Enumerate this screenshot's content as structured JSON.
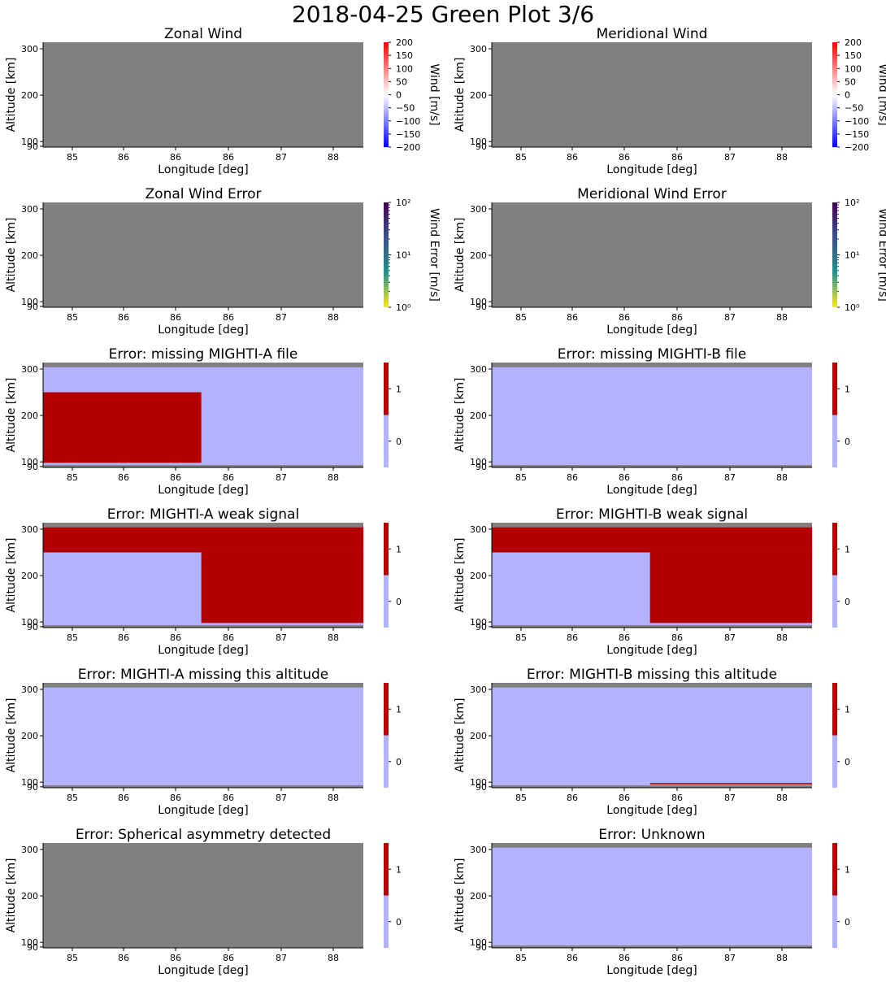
{
  "figure": {
    "title": "2018-04-25 Green Plot 3/6"
  },
  "colors": {
    "background": "#ffffff",
    "no_data": "#808080",
    "flag_0": "#b2b2ff",
    "flag_1": "#b20000"
  },
  "chart_data": [
    {
      "type": "heatmap",
      "title": "Zonal Wind",
      "xlabel": "Longitude [deg]",
      "ylabel": "Altitude [km]",
      "x_ticks": [
        "85",
        "86",
        "86",
        "86",
        "87",
        "88"
      ],
      "y_ticks": [
        "90",
        "100",
        "200",
        "300"
      ],
      "xlim": [
        84.45,
        88.6
      ],
      "ylim": [
        88,
        314
      ],
      "fill": "no_data",
      "regions": [],
      "colorbar": {
        "type": "diverging",
        "label": "Wind [m/s]",
        "colors": [
          "#0000ff",
          "#ffffff",
          "#ff0000"
        ],
        "ticks": [
          "200",
          "150",
          "100",
          "50",
          "0",
          "−50",
          "−100",
          "−150",
          "−200"
        ],
        "range": [
          -200,
          200
        ]
      }
    },
    {
      "type": "heatmap",
      "title": "Meridional Wind",
      "xlabel": "Longitude [deg]",
      "ylabel": "Altitude [km]",
      "x_ticks": [
        "85",
        "86",
        "86",
        "86",
        "87",
        "88"
      ],
      "y_ticks": [
        "90",
        "100",
        "200",
        "300"
      ],
      "xlim": [
        84.45,
        88.6
      ],
      "ylim": [
        88,
        314
      ],
      "fill": "no_data",
      "regions": [],
      "colorbar": {
        "type": "diverging",
        "label": "Wind [m/s]",
        "colors": [
          "#0000ff",
          "#ffffff",
          "#ff0000"
        ],
        "ticks": [
          "200",
          "150",
          "100",
          "50",
          "0",
          "−50",
          "−100",
          "−150",
          "−200"
        ],
        "range": [
          -200,
          200
        ]
      }
    },
    {
      "type": "heatmap",
      "title": "Zonal Wind Error",
      "xlabel": "Longitude [deg]",
      "ylabel": "Altitude [km]",
      "x_ticks": [
        "85",
        "86",
        "86",
        "86",
        "87",
        "88"
      ],
      "y_ticks": [
        "90",
        "100",
        "200",
        "300"
      ],
      "xlim": [
        84.45,
        88.6
      ],
      "ylim": [
        88,
        314
      ],
      "fill": "no_data",
      "regions": [],
      "colorbar": {
        "type": "log",
        "label": "Wind Error [m/s]",
        "colors": [
          "#fde725",
          "#21918c",
          "#3b528b",
          "#440154"
        ],
        "ticks": [
          "10²",
          "10¹",
          "10⁰"
        ],
        "range": [
          1,
          100
        ]
      }
    },
    {
      "type": "heatmap",
      "title": "Meridional Wind Error",
      "xlabel": "Longitude [deg]",
      "ylabel": "Altitude [km]",
      "x_ticks": [
        "85",
        "86",
        "86",
        "86",
        "87",
        "88"
      ],
      "y_ticks": [
        "90",
        "100",
        "200",
        "300"
      ],
      "xlim": [
        84.45,
        88.6
      ],
      "ylim": [
        88,
        314
      ],
      "fill": "no_data",
      "regions": [],
      "colorbar": {
        "type": "log",
        "label": "Wind Error [m/s]",
        "colors": [
          "#fde725",
          "#21918c",
          "#3b528b",
          "#440154"
        ],
        "ticks": [
          "10²",
          "10¹",
          "10⁰"
        ],
        "range": [
          1,
          100
        ]
      }
    },
    {
      "type": "heatmap",
      "title": "Error: missing MIGHTI-A file",
      "xlabel": "Longitude [deg]",
      "ylabel": "Altitude [km]",
      "x_ticks": [
        "85",
        "86",
        "86",
        "86",
        "87",
        "88"
      ],
      "y_ticks": [
        "90",
        "100",
        "200",
        "300"
      ],
      "xlim": [
        84.45,
        88.6
      ],
      "ylim": [
        88,
        314
      ],
      "fill": "no_data",
      "regions": [
        {
          "x": [
            84.45,
            88.6
          ],
          "y": [
            93,
            304
          ],
          "value": 0
        },
        {
          "x": [
            84.45,
            86.5
          ],
          "y": [
            98,
            250
          ],
          "value": 1
        }
      ],
      "colorbar": {
        "type": "flag",
        "label": "",
        "ticks": [
          "1",
          "0"
        ],
        "range": [
          -0.5,
          1.5
        ]
      }
    },
    {
      "type": "heatmap",
      "title": "Error: missing MIGHTI-B file",
      "xlabel": "Longitude [deg]",
      "ylabel": "Altitude [km]",
      "x_ticks": [
        "85",
        "86",
        "86",
        "86",
        "87",
        "88"
      ],
      "y_ticks": [
        "90",
        "100",
        "200",
        "300"
      ],
      "xlim": [
        84.45,
        88.6
      ],
      "ylim": [
        88,
        314
      ],
      "fill": "no_data",
      "regions": [
        {
          "x": [
            84.45,
            88.6
          ],
          "y": [
            93,
            304
          ],
          "value": 0
        }
      ],
      "colorbar": {
        "type": "flag",
        "label": "",
        "ticks": [
          "1",
          "0"
        ],
        "range": [
          -0.5,
          1.5
        ]
      }
    },
    {
      "type": "heatmap",
      "title": "Error: MIGHTI-A weak signal",
      "xlabel": "Longitude [deg]",
      "ylabel": "Altitude [km]",
      "x_ticks": [
        "85",
        "86",
        "86",
        "86",
        "87",
        "88"
      ],
      "y_ticks": [
        "90",
        "100",
        "200",
        "300"
      ],
      "xlim": [
        84.45,
        88.6
      ],
      "ylim": [
        88,
        314
      ],
      "fill": "no_data",
      "regions": [
        {
          "x": [
            84.45,
            88.6
          ],
          "y": [
            93,
            304
          ],
          "value": 0
        },
        {
          "x": [
            84.45,
            88.6
          ],
          "y": [
            250,
            304
          ],
          "value": 1
        },
        {
          "x": [
            86.5,
            88.6
          ],
          "y": [
            98,
            250
          ],
          "value": 1
        }
      ],
      "colorbar": {
        "type": "flag",
        "label": "",
        "ticks": [
          "1",
          "0"
        ],
        "range": [
          -0.5,
          1.5
        ]
      }
    },
    {
      "type": "heatmap",
      "title": "Error: MIGHTI-B weak signal",
      "xlabel": "Longitude [deg]",
      "ylabel": "Altitude [km]",
      "x_ticks": [
        "85",
        "86",
        "86",
        "86",
        "87",
        "88"
      ],
      "y_ticks": [
        "90",
        "100",
        "200",
        "300"
      ],
      "xlim": [
        84.45,
        88.6
      ],
      "ylim": [
        88,
        314
      ],
      "fill": "no_data",
      "regions": [
        {
          "x": [
            84.45,
            88.6
          ],
          "y": [
            93,
            304
          ],
          "value": 0
        },
        {
          "x": [
            84.45,
            88.6
          ],
          "y": [
            250,
            304
          ],
          "value": 1
        },
        {
          "x": [
            86.5,
            88.6
          ],
          "y": [
            98,
            250
          ],
          "value": 1
        }
      ],
      "colorbar": {
        "type": "flag",
        "label": "",
        "ticks": [
          "1",
          "0"
        ],
        "range": [
          -0.5,
          1.5
        ]
      }
    },
    {
      "type": "heatmap",
      "title": "Error: MIGHTI-A missing this altitude",
      "xlabel": "Longitude [deg]",
      "ylabel": "Altitude [km]",
      "x_ticks": [
        "85",
        "86",
        "86",
        "86",
        "87",
        "88"
      ],
      "y_ticks": [
        "90",
        "100",
        "200",
        "300"
      ],
      "xlim": [
        84.45,
        88.6
      ],
      "ylim": [
        88,
        314
      ],
      "fill": "no_data",
      "regions": [
        {
          "x": [
            84.45,
            88.6
          ],
          "y": [
            93,
            304
          ],
          "value": 0
        }
      ],
      "colorbar": {
        "type": "flag",
        "label": "",
        "ticks": [
          "1",
          "0"
        ],
        "range": [
          -0.5,
          1.5
        ]
      }
    },
    {
      "type": "heatmap",
      "title": "Error: MIGHTI-B missing this altitude",
      "xlabel": "Longitude [deg]",
      "ylabel": "Altitude [km]",
      "x_ticks": [
        "85",
        "86",
        "86",
        "86",
        "87",
        "88"
      ],
      "y_ticks": [
        "90",
        "100",
        "200",
        "300"
      ],
      "xlim": [
        84.45,
        88.6
      ],
      "ylim": [
        88,
        314
      ],
      "fill": "no_data",
      "regions": [
        {
          "x": [
            84.45,
            88.6
          ],
          "y": [
            93,
            304
          ],
          "value": 0
        },
        {
          "x": [
            86.5,
            88.6
          ],
          "y": [
            95,
            98
          ],
          "value": 1
        }
      ],
      "colorbar": {
        "type": "flag",
        "label": "",
        "ticks": [
          "1",
          "0"
        ],
        "range": [
          -0.5,
          1.5
        ]
      }
    },
    {
      "type": "heatmap",
      "title": "Error: Spherical asymmetry detected",
      "xlabel": "Longitude [deg]",
      "ylabel": "Altitude [km]",
      "x_ticks": [
        "85",
        "86",
        "86",
        "86",
        "87",
        "88"
      ],
      "y_ticks": [
        "90",
        "100",
        "200",
        "300"
      ],
      "xlim": [
        84.45,
        88.6
      ],
      "ylim": [
        88,
        314
      ],
      "fill": "no_data",
      "regions": [],
      "colorbar": {
        "type": "flag",
        "label": "",
        "ticks": [
          "1",
          "0"
        ],
        "range": [
          -0.5,
          1.5
        ]
      }
    },
    {
      "type": "heatmap",
      "title": "Error: Unknown",
      "xlabel": "Longitude [deg]",
      "ylabel": "Altitude [km]",
      "x_ticks": [
        "85",
        "86",
        "86",
        "86",
        "87",
        "88"
      ],
      "y_ticks": [
        "90",
        "100",
        "200",
        "300"
      ],
      "xlim": [
        84.45,
        88.6
      ],
      "ylim": [
        88,
        314
      ],
      "fill": "no_data",
      "regions": [
        {
          "x": [
            84.45,
            88.6
          ],
          "y": [
            93,
            304
          ],
          "value": 0
        }
      ],
      "colorbar": {
        "type": "flag",
        "label": "",
        "ticks": [
          "1",
          "0"
        ],
        "range": [
          -0.5,
          1.5
        ]
      }
    }
  ]
}
